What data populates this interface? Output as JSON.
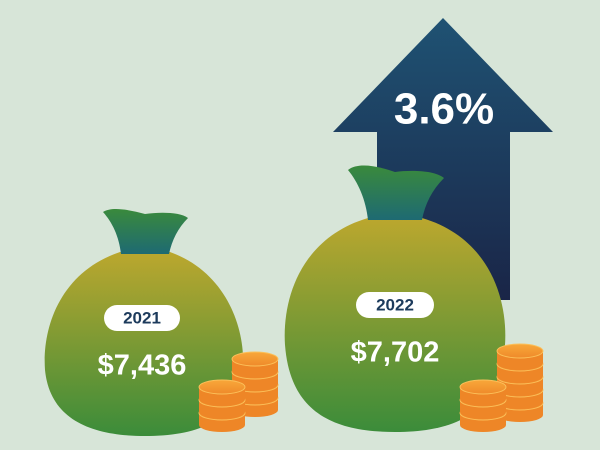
{
  "growth": "3.6%",
  "items": [
    {
      "year": "2021",
      "amount": "$7,436"
    },
    {
      "year": "2022",
      "amount": "$7,702"
    }
  ]
}
